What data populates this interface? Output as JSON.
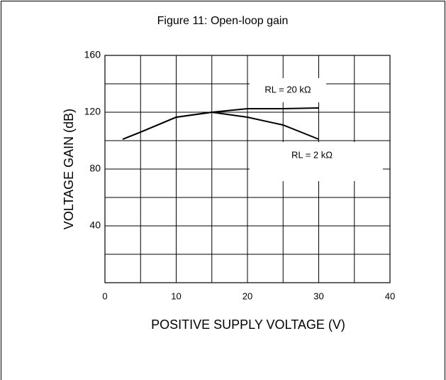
{
  "chart_data": {
    "type": "line",
    "title": "Figure 11: Open-loop gain",
    "xlabel": "POSITIVE SUPPLY VOLTAGE (V)",
    "ylabel": "VOLTAGE GAIN (dB)",
    "xlim": [
      0,
      40
    ],
    "ylim": [
      0,
      160
    ],
    "xticks": [
      0,
      10,
      20,
      30,
      40
    ],
    "yticks": [
      40,
      80,
      120,
      160
    ],
    "xgrid": [
      5,
      10,
      15,
      20,
      25,
      30,
      35
    ],
    "ygrid": [
      20,
      40,
      60,
      80,
      100,
      120,
      140
    ],
    "grid": true,
    "series": [
      {
        "name": "RL = 20 kΩ",
        "color": "#000000",
        "x": [
          2.5,
          5,
          10,
          15,
          20,
          25,
          30
        ],
        "values": [
          101,
          106,
          116.5,
          120,
          122.5,
          122.5,
          123
        ]
      },
      {
        "name": "RL = 2 kΩ",
        "color": "#000000",
        "x": [
          2.5,
          5,
          10,
          15,
          20,
          25,
          30
        ],
        "values": [
          101,
          106,
          116.5,
          120,
          116.5,
          111,
          101
        ]
      }
    ]
  }
}
